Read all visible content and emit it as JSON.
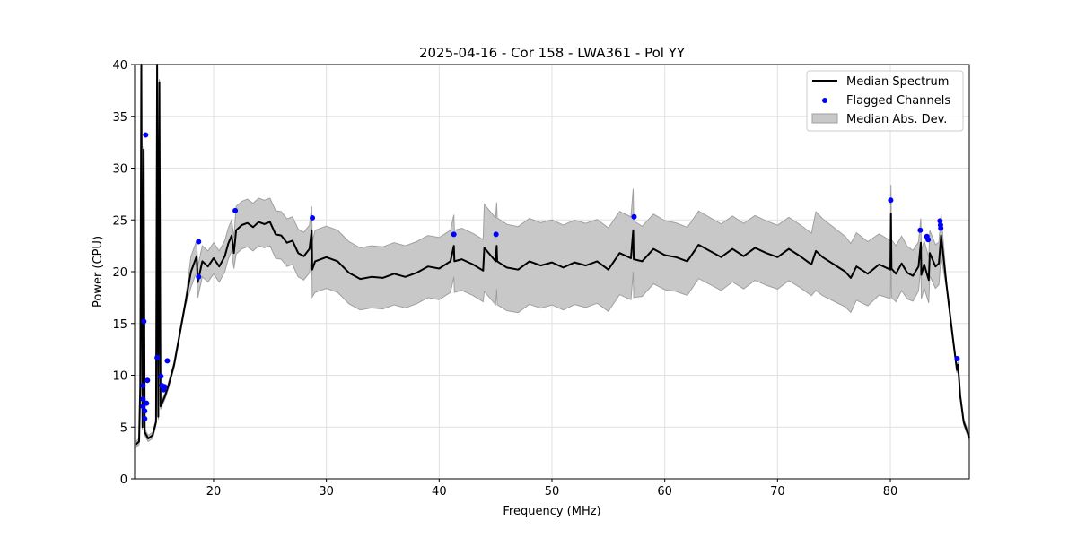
{
  "chart_data": {
    "type": "line",
    "title": "2025-04-16 - Cor 158 - LWA361 - Pol YY",
    "xlabel": "Frequency (MHz)",
    "ylabel": "Power (CPU)",
    "xlim": [
      13.0,
      87.0
    ],
    "ylim": [
      0,
      40
    ],
    "xticks": [
      20,
      30,
      40,
      50,
      60,
      70,
      80
    ],
    "yticks": [
      0,
      5,
      10,
      15,
      20,
      25,
      30,
      35,
      40
    ],
    "grid": true,
    "legend_position": "top-right",
    "legend": [
      "Median Spectrum",
      "Flagged Channels",
      "Median Abs. Dev."
    ],
    "colors": {
      "median": "#000000",
      "flagged": "#0000ff",
      "band": "#c8c8c8",
      "band_edge": "#a0a0a0"
    },
    "median_spectrum": [
      [
        13.1,
        3.3
      ],
      [
        13.4,
        3.6
      ],
      [
        13.5,
        9
      ],
      [
        13.6,
        40
      ],
      [
        13.7,
        5
      ],
      [
        13.8,
        31.8
      ],
      [
        13.9,
        4.5
      ],
      [
        14.2,
        3.9
      ],
      [
        14.6,
        4.2
      ],
      [
        14.9,
        5.5
      ],
      [
        15.0,
        40
      ],
      [
        15.1,
        6
      ],
      [
        15.2,
        38.3
      ],
      [
        15.3,
        7
      ],
      [
        15.7,
        8
      ],
      [
        16,
        9
      ],
      [
        16.5,
        11
      ],
      [
        17,
        14
      ],
      [
        17.5,
        17
      ],
      [
        18,
        20
      ],
      [
        18.5,
        21.5
      ],
      [
        18.6,
        19
      ],
      [
        19,
        21
      ],
      [
        19.5,
        20.5
      ],
      [
        20,
        21.3
      ],
      [
        20.5,
        20.5
      ],
      [
        21,
        21.5
      ],
      [
        21.3,
        22.7
      ],
      [
        21.6,
        23.5
      ],
      [
        21.8,
        21.8
      ],
      [
        22,
        24
      ],
      [
        22.5,
        24.5
      ],
      [
        23,
        24.7
      ],
      [
        23.5,
        24.3
      ],
      [
        24,
        24.8
      ],
      [
        24.5,
        24.6
      ],
      [
        25,
        24.8
      ],
      [
        25.5,
        23.6
      ],
      [
        26,
        23.5
      ],
      [
        26.5,
        22.8
      ],
      [
        27,
        23
      ],
      [
        27.5,
        21.8
      ],
      [
        28,
        21.5
      ],
      [
        28.5,
        22.2
      ],
      [
        28.7,
        24
      ],
      [
        28.75,
        20.2
      ],
      [
        29,
        21
      ],
      [
        30,
        21.4
      ],
      [
        31,
        21
      ],
      [
        32,
        19.9
      ],
      [
        33,
        19.3
      ],
      [
        34,
        19.5
      ],
      [
        35,
        19.4
      ],
      [
        36,
        19.8
      ],
      [
        37,
        19.5
      ],
      [
        38,
        19.9
      ],
      [
        39,
        20.5
      ],
      [
        40,
        20.3
      ],
      [
        41,
        21
      ],
      [
        41.3,
        22.5
      ],
      [
        41.35,
        21
      ],
      [
        42,
        21.2
      ],
      [
        43,
        20.7
      ],
      [
        43.9,
        20.1
      ],
      [
        44,
        22.3
      ],
      [
        45,
        21.0
      ],
      [
        45.1,
        22.5
      ],
      [
        45.15,
        21
      ],
      [
        46,
        20.4
      ],
      [
        47,
        20.2
      ],
      [
        48,
        21
      ],
      [
        49,
        20.6
      ],
      [
        50,
        20.9
      ],
      [
        51,
        20.4
      ],
      [
        52,
        20.9
      ],
      [
        53,
        20.6
      ],
      [
        54,
        21
      ],
      [
        55,
        20.2
      ],
      [
        56,
        21.8
      ],
      [
        57,
        21.3
      ],
      [
        57.2,
        24
      ],
      [
        57.25,
        21.2
      ],
      [
        58,
        21
      ],
      [
        59,
        22.2
      ],
      [
        60,
        21.6
      ],
      [
        61,
        21.4
      ],
      [
        62,
        21
      ],
      [
        63,
        22.6
      ],
      [
        64,
        22
      ],
      [
        65,
        21.4
      ],
      [
        66,
        22.2
      ],
      [
        67,
        21.5
      ],
      [
        68,
        22.3
      ],
      [
        69,
        21.8
      ],
      [
        70,
        21.4
      ],
      [
        71,
        22.2
      ],
      [
        72,
        21.5
      ],
      [
        73,
        20.7
      ],
      [
        73.4,
        22.0
      ],
      [
        74,
        21.4
      ],
      [
        75,
        20.7
      ],
      [
        76,
        20
      ],
      [
        76.5,
        19.4
      ],
      [
        77,
        20.5
      ],
      [
        78,
        19.8
      ],
      [
        79,
        20.7
      ],
      [
        80,
        20.2
      ],
      [
        80.05,
        25.6
      ],
      [
        80.1,
        20.3
      ],
      [
        80.5,
        19.8
      ],
      [
        81,
        20.8
      ],
      [
        81.5,
        19.9
      ],
      [
        82,
        19.6
      ],
      [
        82.5,
        20.5
      ],
      [
        82.7,
        22.8
      ],
      [
        82.75,
        19.7
      ],
      [
        83,
        20.7
      ],
      [
        83.4,
        19.2
      ],
      [
        83.5,
        21.8
      ],
      [
        84,
        20.5
      ],
      [
        84.3,
        20.8
      ],
      [
        84.5,
        23.5
      ],
      [
        85,
        18.5
      ],
      [
        85.5,
        14
      ],
      [
        85.9,
        10.5
      ],
      [
        86,
        11
      ],
      [
        86.2,
        8
      ],
      [
        86.5,
        5.5
      ],
      [
        87,
        4.0
      ]
    ],
    "median_abs_dev": [
      [
        13,
        0.3
      ],
      [
        17.8,
        0.3
      ],
      [
        18,
        1.5
      ],
      [
        21.8,
        1.5
      ],
      [
        22,
        2.3
      ],
      [
        28.7,
        2.3
      ],
      [
        28.8,
        3
      ],
      [
        43.9,
        3
      ],
      [
        44,
        4.2
      ],
      [
        57.2,
        4
      ],
      [
        57.3,
        3.4
      ],
      [
        73.3,
        3
      ],
      [
        73.4,
        3.8
      ],
      [
        80,
        2.8
      ],
      [
        84.6,
        2
      ],
      [
        85,
        0.3
      ],
      [
        87,
        0.3
      ]
    ],
    "flagged_channels": [
      [
        13.98,
        33.2
      ],
      [
        13.82,
        15.2
      ],
      [
        15.0,
        11.7
      ],
      [
        15.9,
        11.4
      ],
      [
        14.14,
        9.5
      ],
      [
        13.74,
        9.0
      ],
      [
        15.33,
        9.9
      ],
      [
        15.41,
        9.0
      ],
      [
        15.65,
        8.9
      ],
      [
        15.57,
        8.6
      ],
      [
        13.74,
        7.7
      ],
      [
        14.06,
        7.3
      ],
      [
        13.74,
        7.0
      ],
      [
        13.9,
        6.55
      ],
      [
        13.9,
        5.8
      ],
      [
        18.67,
        22.9
      ],
      [
        18.67,
        19.5
      ],
      [
        21.92,
        25.9
      ],
      [
        28.76,
        25.2
      ],
      [
        41.3,
        23.6
      ],
      [
        45.04,
        23.6
      ],
      [
        57.28,
        25.3
      ],
      [
        80.03,
        26.9
      ],
      [
        82.65,
        24.0
      ],
      [
        83.24,
        23.4
      ],
      [
        83.35,
        23.1
      ],
      [
        84.4,
        24.9
      ],
      [
        84.45,
        24.5
      ],
      [
        84.47,
        24.2
      ],
      [
        85.92,
        11.6
      ]
    ]
  }
}
